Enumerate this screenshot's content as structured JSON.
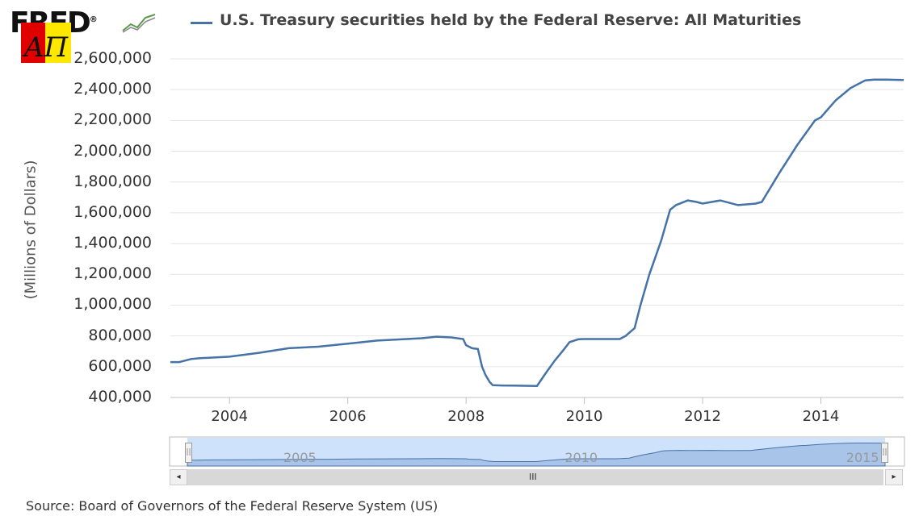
{
  "header": {
    "logo_text": "FRED",
    "logo_mark": "®",
    "watermark_text": "AП",
    "title": "U.S. Treasury securities held by the Federal Reserve: All Maturities"
  },
  "source_text": "Source: Board of Governors of the Federal Reserve System (US)",
  "colors": {
    "series": "#4572a7",
    "navigator_fill": "#a8c4e8",
    "navigator_sel": "#cfe2fb"
  },
  "navigator": {
    "labels": [
      "2005",
      "2010",
      "2015"
    ],
    "scroll_grip": "III",
    "left_arrow": "◂",
    "right_arrow": "▸",
    "handle_glyph": "||"
  },
  "chart_data": {
    "type": "line",
    "title": "U.S. Treasury securities held by the Federal Reserve: All Maturities",
    "ylabel": "(Millions of Dollars)",
    "xlabel": "",
    "ylim": [
      400000,
      2600000
    ],
    "xlim": [
      2003.0,
      2015.4
    ],
    "yticks": [
      400000,
      600000,
      800000,
      1000000,
      1200000,
      1400000,
      1600000,
      1800000,
      2000000,
      2200000,
      2400000,
      2600000
    ],
    "ytick_labels": [
      "400,000",
      "600,000",
      "800,000",
      "1,000,000",
      "1,200,000",
      "1,400,000",
      "1,600,000",
      "1,800,000",
      "2,000,000",
      "2,200,000",
      "2,400,000",
      "2,600,000"
    ],
    "xticks": [
      2004,
      2006,
      2008,
      2010,
      2012,
      2014
    ],
    "xtick_labels": [
      "2004",
      "2006",
      "2008",
      "2010",
      "2012",
      "2014"
    ],
    "grid": true,
    "legend": "top",
    "series": [
      {
        "name": "U.S. Treasury securities held by the Federal Reserve: All Maturities",
        "x": [
          2003.0,
          2003.15,
          2003.35,
          2003.5,
          2004.0,
          2004.5,
          2005.0,
          2005.5,
          2006.0,
          2006.5,
          2007.0,
          2007.25,
          2007.5,
          2007.75,
          2007.95,
          2008.0,
          2008.1,
          2008.2,
          2008.27,
          2008.33,
          2008.4,
          2008.45,
          2008.6,
          2008.8,
          2009.0,
          2009.2,
          2009.35,
          2009.5,
          2009.65,
          2009.75,
          2009.9,
          2010.0,
          2010.3,
          2010.6,
          2010.7,
          2010.85,
          2010.95,
          2011.1,
          2011.3,
          2011.45,
          2011.55,
          2011.75,
          2011.9,
          2012.0,
          2012.3,
          2012.6,
          2012.9,
          2013.0,
          2013.3,
          2013.6,
          2013.9,
          2014.0,
          2014.25,
          2014.5,
          2014.75,
          2014.9,
          2015.1,
          2015.4
        ],
        "y": [
          630000,
          630000,
          650000,
          655000,
          665000,
          690000,
          720000,
          730000,
          750000,
          770000,
          780000,
          785000,
          795000,
          790000,
          780000,
          740000,
          720000,
          715000,
          600000,
          545000,
          500000,
          480000,
          478000,
          477000,
          476000,
          475000,
          560000,
          640000,
          710000,
          760000,
          778000,
          780000,
          780000,
          780000,
          800000,
          850000,
          1000000,
          1200000,
          1420000,
          1620000,
          1650000,
          1680000,
          1670000,
          1660000,
          1680000,
          1650000,
          1660000,
          1670000,
          1860000,
          2040000,
          2200000,
          2220000,
          2330000,
          2410000,
          2460000,
          2465000,
          2465000,
          2463000
        ]
      }
    ]
  }
}
